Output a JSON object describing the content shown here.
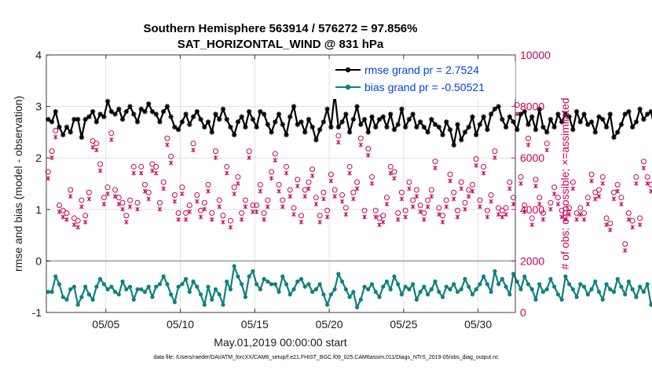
{
  "chart_data": {
    "type": "line",
    "title_line1": "Southern Hemisphere 563914 / 576272 = 97.856%",
    "title_line2": "SAT_HORIZONTAL_WIND @ 831 hPa",
    "xlabel": "May.01,2019 00:00:00 start",
    "ylabel": "rmse and bias (model - observation)",
    "ylabel_right": "# of obs: o=possible; ×=assimilated",
    "xlim": [
      0,
      31.5
    ],
    "ylim": [
      -1,
      4
    ],
    "ylim_right": [
      0,
      10000
    ],
    "x_ticks": [
      {
        "value": 4,
        "label": "05/05"
      },
      {
        "value": 9,
        "label": "05/10"
      },
      {
        "value": 14,
        "label": "05/15"
      },
      {
        "value": 19,
        "label": "05/20"
      },
      {
        "value": 24,
        "label": "05/25"
      },
      {
        "value": 29,
        "label": "05/30"
      }
    ],
    "y_ticks": [
      {
        "value": -1,
        "label": "-1"
      },
      {
        "value": 0,
        "label": "0"
      },
      {
        "value": 1,
        "label": "1"
      },
      {
        "value": 2,
        "label": "2"
      },
      {
        "value": 3,
        "label": "3"
      },
      {
        "value": 4,
        "label": "4"
      }
    ],
    "y_right_ticks": [
      {
        "value": 0,
        "label": "0"
      },
      {
        "value": 2000,
        "label": "2000"
      },
      {
        "value": 4000,
        "label": "4000"
      },
      {
        "value": 6000,
        "label": "6000"
      },
      {
        "value": 8000,
        "label": "8000"
      },
      {
        "value": 10000,
        "label": "10000"
      }
    ],
    "time_step_days": 0.25,
    "series": [
      {
        "name": "rmse grand pr = 2.7524",
        "color": "#000000",
        "axis": "left",
        "marker": "asterisk",
        "values": [
          2.75,
          2.7,
          2.9,
          2.6,
          2.45,
          2.6,
          2.5,
          2.75,
          2.75,
          2.4,
          2.75,
          2.8,
          2.9,
          2.7,
          2.85,
          2.8,
          3.1,
          2.9,
          2.85,
          2.95,
          2.75,
          2.9,
          3.0,
          2.85,
          2.7,
          2.95,
          2.9,
          3.05,
          2.9,
          2.85,
          2.7,
          2.9,
          3.0,
          2.8,
          2.6,
          2.55,
          2.7,
          2.85,
          2.65,
          2.8,
          2.9,
          2.75,
          2.6,
          2.7,
          2.5,
          2.85,
          2.75,
          2.95,
          2.75,
          2.6,
          2.45,
          2.7,
          2.8,
          2.6,
          2.9,
          2.75,
          2.6,
          2.9,
          2.85,
          2.65,
          2.5,
          2.7,
          2.85,
          2.65,
          2.45,
          2.8,
          3.0,
          2.65,
          2.7,
          2.5,
          2.75,
          2.6,
          2.35,
          2.55,
          2.7,
          2.95,
          2.6,
          3.25,
          2.6,
          2.7,
          2.85,
          2.5,
          2.75,
          3.0,
          2.65,
          2.75,
          2.5,
          2.8,
          2.6,
          2.75,
          2.8,
          2.6,
          2.85,
          2.55,
          2.65,
          2.95,
          2.6,
          2.75,
          2.85,
          2.6,
          2.7,
          2.6,
          2.5,
          2.75,
          2.65,
          2.6,
          2.45,
          2.7,
          2.55,
          2.25,
          2.65,
          2.35,
          2.5,
          2.6,
          2.8,
          2.45,
          2.65,
          2.8,
          2.55,
          2.85,
          2.95,
          3.0,
          2.75,
          2.6,
          2.8,
          2.7,
          2.55,
          2.85,
          2.9,
          2.65,
          2.8,
          2.55,
          2.95,
          2.6,
          2.5,
          2.75,
          2.6,
          2.85,
          2.7,
          2.85,
          2.8,
          2.55,
          2.9,
          2.7,
          2.85,
          2.65,
          2.7,
          2.5,
          2.8,
          2.75,
          2.6,
          2.85,
          2.4,
          2.5,
          2.65,
          2.85,
          2.9,
          2.6,
          2.7,
          2.95,
          2.75,
          2.85,
          2.9,
          2.55,
          2.75,
          2.9,
          2.6,
          2.8,
          2.7,
          2.75,
          2.55,
          2.85,
          2.65,
          2.8,
          2.45,
          2.75,
          2.6,
          2.85,
          2.75,
          2.9,
          3.0,
          2.8,
          2.9,
          3.1,
          2.85,
          2.65,
          2.75,
          3.0,
          2.9,
          3.35,
          2.85,
          2.7,
          2.6,
          2.8,
          3.0,
          2.85,
          2.9
        ]
      },
      {
        "name": "bias grand pr = -0.50521",
        "color": "#0f8080",
        "axis": "left",
        "marker": "dot",
        "values": [
          -0.6,
          -0.6,
          -0.3,
          -0.45,
          -0.7,
          -0.75,
          -0.55,
          -0.5,
          -0.85,
          -0.7,
          -0.5,
          -0.65,
          -0.75,
          -0.5,
          -0.35,
          -0.45,
          -0.55,
          -0.5,
          -0.6,
          -0.65,
          -0.4,
          -0.55,
          -0.5,
          -0.75,
          -0.55,
          -0.55,
          -0.6,
          -0.5,
          -0.7,
          -0.5,
          -0.45,
          -0.3,
          -0.45,
          -0.65,
          -0.8,
          -0.5,
          -0.45,
          -0.35,
          -0.6,
          -0.4,
          -0.5,
          -0.65,
          -0.85,
          -0.5,
          -0.75,
          -0.55,
          -0.65,
          -0.85,
          -0.4,
          -0.55,
          -0.1,
          -0.3,
          -0.45,
          -0.7,
          -0.3,
          -0.2,
          -0.45,
          -0.55,
          -0.35,
          -0.4,
          -0.45,
          -0.45,
          -0.6,
          -0.3,
          -0.45,
          -0.65,
          -0.55,
          -0.4,
          -0.35,
          -0.5,
          -0.45,
          -0.6,
          -0.55,
          -0.45,
          -0.65,
          -0.85,
          -0.65,
          -0.55,
          -0.25,
          -0.4,
          -0.55,
          -0.7,
          -0.6,
          -0.9,
          -0.75,
          -0.5,
          -0.55,
          -0.45,
          -0.6,
          -0.7,
          -0.5,
          -0.4,
          -0.55,
          -0.3,
          -0.45,
          -0.65,
          -0.5,
          -0.55,
          -0.45,
          -0.75,
          -0.6,
          -0.5,
          -0.65,
          -0.55,
          -0.4,
          -0.6,
          -0.7,
          -0.5,
          -0.55,
          -0.45,
          -0.6,
          -0.55,
          -0.35,
          -0.5,
          -0.65,
          -0.55,
          -0.45,
          -0.3,
          -0.45,
          -0.6,
          -0.2,
          -0.45,
          -0.35,
          -0.5,
          -0.65,
          -0.25,
          -0.4,
          -0.55,
          -0.3,
          -0.45,
          -0.55,
          -0.75,
          -0.45,
          -0.6,
          -0.55,
          -0.35,
          -0.5,
          -0.65,
          -0.75,
          -0.3,
          -0.45,
          -0.55,
          -0.7,
          -0.45,
          -0.5,
          -0.65,
          -0.55,
          -0.4,
          -0.6,
          -0.75,
          -0.45,
          -0.55,
          -0.6,
          -0.35,
          -0.5,
          -0.65,
          -0.4,
          -0.55,
          -0.7,
          -0.5,
          -0.6,
          -0.45,
          -0.85,
          -0.7,
          -0.55,
          -0.3,
          -0.5,
          -0.65,
          -0.4,
          -0.55,
          -0.6,
          -0.5,
          -0.75,
          -0.55,
          -0.6,
          -0.35,
          -0.5,
          -0.65,
          -0.55,
          -0.45,
          -0.75,
          -0.5,
          -0.4,
          -0.6,
          -0.45,
          -1.0,
          -0.8,
          -0.75,
          -0.85,
          -0.6,
          -0.5,
          -0.75,
          -0.45,
          -0.5,
          -0.55
        ]
      }
    ],
    "obs_series": [
      {
        "name": "possible",
        "marker": "circle",
        "color": "#c8005a",
        "axis": "right",
        "values": [
          5400,
          6200,
          7000,
          4100,
          3900,
          3800,
          4700,
          3600,
          3500,
          4300,
          3700,
          4600,
          6600,
          6500,
          5700,
          4400,
          4800,
          6900,
          4700,
          4400,
          4200,
          3700,
          4300,
          5600,
          4200,
          5600,
          4900,
          4600,
          5700,
          5600,
          4200,
          5000,
          6700,
          6000,
          4500,
          3800,
          4800,
          3800,
          4100,
          6500,
          4500,
          3900,
          4200,
          4900,
          3800,
          6200,
          4300,
          3700,
          5600,
          3500,
          4800,
          5200,
          3800,
          4300,
          6200,
          4100,
          4100,
          4900,
          3800,
          4300,
          5400,
          6100,
          4900,
          4300,
          5600,
          4700,
          4000,
          5100,
          3700,
          4700,
          5000,
          5500,
          4400,
          3700,
          4600,
          3900,
          5300,
          4700,
          6800,
          4500,
          4000,
          5600,
          4600,
          5000,
          6700,
          3900,
          6300,
          5200,
          3900,
          3600,
          3700,
          4400,
          5600,
          5400,
          3800,
          4600,
          3900,
          5000,
          4300,
          4700,
          4100,
          3800,
          4300,
          4700,
          5800,
          4000,
          3700,
          4300,
          5300,
          4600,
          3900,
          5000,
          4200,
          4700,
          4900,
          5900,
          4300,
          5600,
          3900,
          4500,
          6200,
          4000,
          3900,
          4000,
          5000,
          4400,
          8000,
          5200,
          4100,
          6700,
          3600,
          5100,
          4400,
          3800,
          6500,
          4200,
          4800,
          4400,
          3900,
          3800,
          4000,
          5000,
          3800,
          4000,
          3800,
          4400,
          5300,
          4600,
          4700,
          5200,
          3600,
          3400,
          4600,
          4900,
          4400,
          2600,
          3800,
          3500,
          5200,
          3600,
          5800,
          5200,
          4900,
          4300,
          3800,
          7000,
          4100,
          3500,
          6500,
          3600,
          3400,
          3600,
          4100,
          4200,
          3500,
          3900,
          3200,
          3200,
          3600,
          3700,
          3300,
          3300,
          3800,
          3400,
          4200,
          3900,
          3900,
          3700,
          4100,
          3500,
          3300
        ]
      },
      {
        "name": "assimilated",
        "marker": "x",
        "color": "#c8005a",
        "axis": "right",
        "values": [
          5300,
          6100,
          6900,
          4000,
          3800,
          3700,
          4600,
          3500,
          3400,
          4200,
          3600,
          4500,
          6500,
          6400,
          5600,
          4300,
          4700,
          6800,
          4600,
          4300,
          4100,
          3600,
          4200,
          5500,
          4100,
          5500,
          4800,
          4500,
          5600,
          5500,
          4100,
          4900,
          6600,
          5900,
          4400,
          3700,
          4700,
          3700,
          4000,
          6400,
          4400,
          3800,
          4100,
          4800,
          3700,
          6100,
          4200,
          3600,
          5500,
          3400,
          4700,
          5100,
          3700,
          4200,
          6100,
          4000,
          4000,
          4800,
          3700,
          4200,
          5300,
          6000,
          4800,
          4200,
          5500,
          4600,
          3900,
          5000,
          3600,
          4600,
          4900,
          5400,
          4300,
          3600,
          4500,
          3800,
          5200,
          4600,
          6700,
          4400,
          3900,
          5500,
          4500,
          4900,
          6600,
          3800,
          6200,
          5100,
          3800,
          3500,
          3600,
          4300,
          5500,
          5300,
          3700,
          4500,
          3800,
          4900,
          4200,
          4600,
          4000,
          3700,
          4200,
          4600,
          5700,
          3900,
          3600,
          4200,
          5200,
          4500,
          3800,
          4900,
          4100,
          4600,
          4800,
          5800,
          4200,
          5500,
          3800,
          4400,
          6100,
          3900,
          3800,
          3900,
          4900,
          4300,
          7800,
          5100,
          4000,
          6600,
          3500,
          5000,
          4300,
          3700,
          6400,
          4100,
          4700,
          4300,
          3800,
          3700,
          3900,
          4900,
          3700,
          3900,
          3700,
          4300,
          5200,
          4500,
          4600,
          5100,
          3500,
          3300,
          4500,
          4800,
          4300,
          2500,
          3700,
          3400,
          5100,
          3500,
          5700,
          5100,
          4800,
          4200,
          3700,
          6900,
          4000,
          3400,
          6400,
          3500,
          3300,
          3500,
          4000,
          4100,
          3400,
          3800,
          3100,
          3100,
          3500,
          3600,
          3200,
          3200,
          3700,
          3300,
          4100,
          3800,
          3800,
          3600,
          4000,
          3400,
          3200
        ]
      }
    ],
    "footer": "data file: /Users/raeder/DAI/ATM_forcXX/CAM6_setup/f.e21.FHIST_BGC.f09_025.CAM6assim.011/Diags_NTrS_2019-05/obs_diag_output.nc"
  },
  "colors": {
    "rmse": "#000000",
    "bias": "#0f8080",
    "obs": "#c8005a",
    "legend_text": "#0044dd",
    "grid": "#d9d9d9",
    "zero_line": "#b0b0b0"
  }
}
